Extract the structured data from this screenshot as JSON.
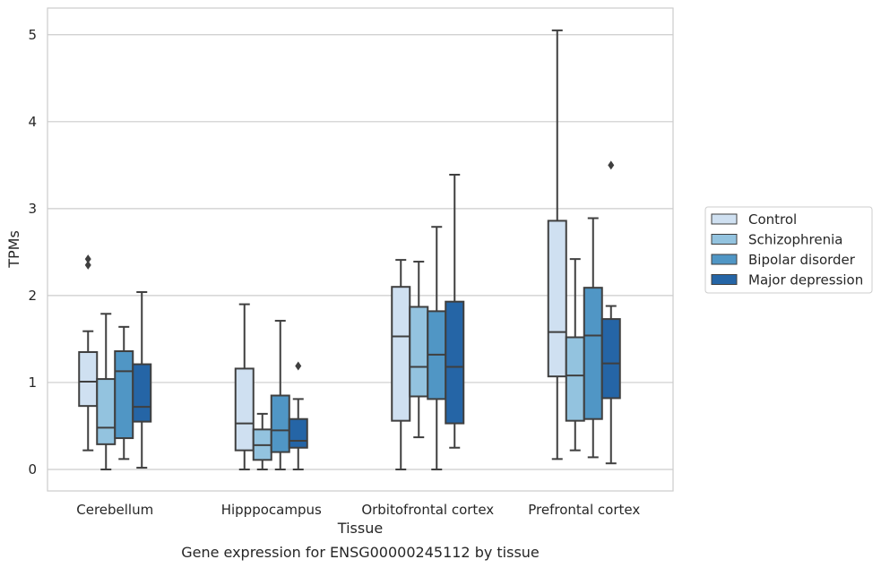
{
  "caption": "Gene expression for ENSG00000245112 by tissue",
  "chart_data": {
    "type": "box",
    "xlabel": "Tissue",
    "ylabel": "TPMs",
    "ylim": [
      -0.25,
      5.3
    ],
    "yticks": [
      "0",
      "1",
      "2",
      "3",
      "4",
      "5"
    ],
    "grid": true,
    "legend_placement": "right",
    "categories": [
      "Cerebellum",
      "Hipppocampus",
      "Orbitofrontal cortex",
      "Prefrontal cortex"
    ],
    "series": [
      {
        "name": "Control",
        "color": "#cfe0f1",
        "boxes": [
          {
            "whislo": 0.22,
            "q1": 0.73,
            "med": 1.01,
            "q3": 1.35,
            "whishi": 1.59,
            "fliers": [
              2.35,
              2.42
            ]
          },
          {
            "whislo": 0.0,
            "q1": 0.22,
            "med": 0.53,
            "q3": 1.16,
            "whishi": 1.9,
            "fliers": []
          },
          {
            "whislo": 0.0,
            "q1": 0.56,
            "med": 1.53,
            "q3": 2.1,
            "whishi": 2.41,
            "fliers": []
          },
          {
            "whislo": 0.12,
            "q1": 1.07,
            "med": 1.58,
            "q3": 2.86,
            "whishi": 5.05,
            "fliers": []
          }
        ]
      },
      {
        "name": "Schizophrenia",
        "color": "#93c3df",
        "boxes": [
          {
            "whislo": 0.0,
            "q1": 0.29,
            "med": 0.48,
            "q3": 1.04,
            "whishi": 1.79,
            "fliers": []
          },
          {
            "whislo": 0.0,
            "q1": 0.11,
            "med": 0.28,
            "q3": 0.46,
            "whishi": 0.64,
            "fliers": []
          },
          {
            "whislo": 0.37,
            "q1": 0.84,
            "med": 1.18,
            "q3": 1.87,
            "whishi": 2.39,
            "fliers": []
          },
          {
            "whislo": 0.22,
            "q1": 0.56,
            "med": 1.08,
            "q3": 1.52,
            "whishi": 2.42,
            "fliers": []
          }
        ]
      },
      {
        "name": "Bipolar disorder",
        "color": "#5096c5",
        "boxes": [
          {
            "whislo": 0.12,
            "q1": 0.36,
            "med": 1.13,
            "q3": 1.36,
            "whishi": 1.64,
            "fliers": []
          },
          {
            "whislo": 0.0,
            "q1": 0.2,
            "med": 0.45,
            "q3": 0.85,
            "whishi": 1.71,
            "fliers": []
          },
          {
            "whislo": 0.0,
            "q1": 0.81,
            "med": 1.32,
            "q3": 1.82,
            "whishi": 2.79,
            "fliers": []
          },
          {
            "whislo": 0.14,
            "q1": 0.58,
            "med": 1.54,
            "q3": 2.09,
            "whishi": 2.89,
            "fliers": []
          }
        ]
      },
      {
        "name": "Major depression",
        "color": "#2565a6",
        "boxes": [
          {
            "whislo": 0.02,
            "q1": 0.55,
            "med": 0.72,
            "q3": 1.21,
            "whishi": 2.04,
            "fliers": []
          },
          {
            "whislo": 0.0,
            "q1": 0.25,
            "med": 0.33,
            "q3": 0.58,
            "whishi": 0.81,
            "fliers": [
              1.19
            ]
          },
          {
            "whislo": 0.25,
            "q1": 0.53,
            "med": 1.18,
            "q3": 1.93,
            "whishi": 3.39,
            "fliers": []
          },
          {
            "whislo": 0.07,
            "q1": 0.82,
            "med": 1.22,
            "q3": 1.73,
            "whishi": 1.88,
            "fliers": [
              3.5
            ]
          }
        ]
      }
    ]
  }
}
